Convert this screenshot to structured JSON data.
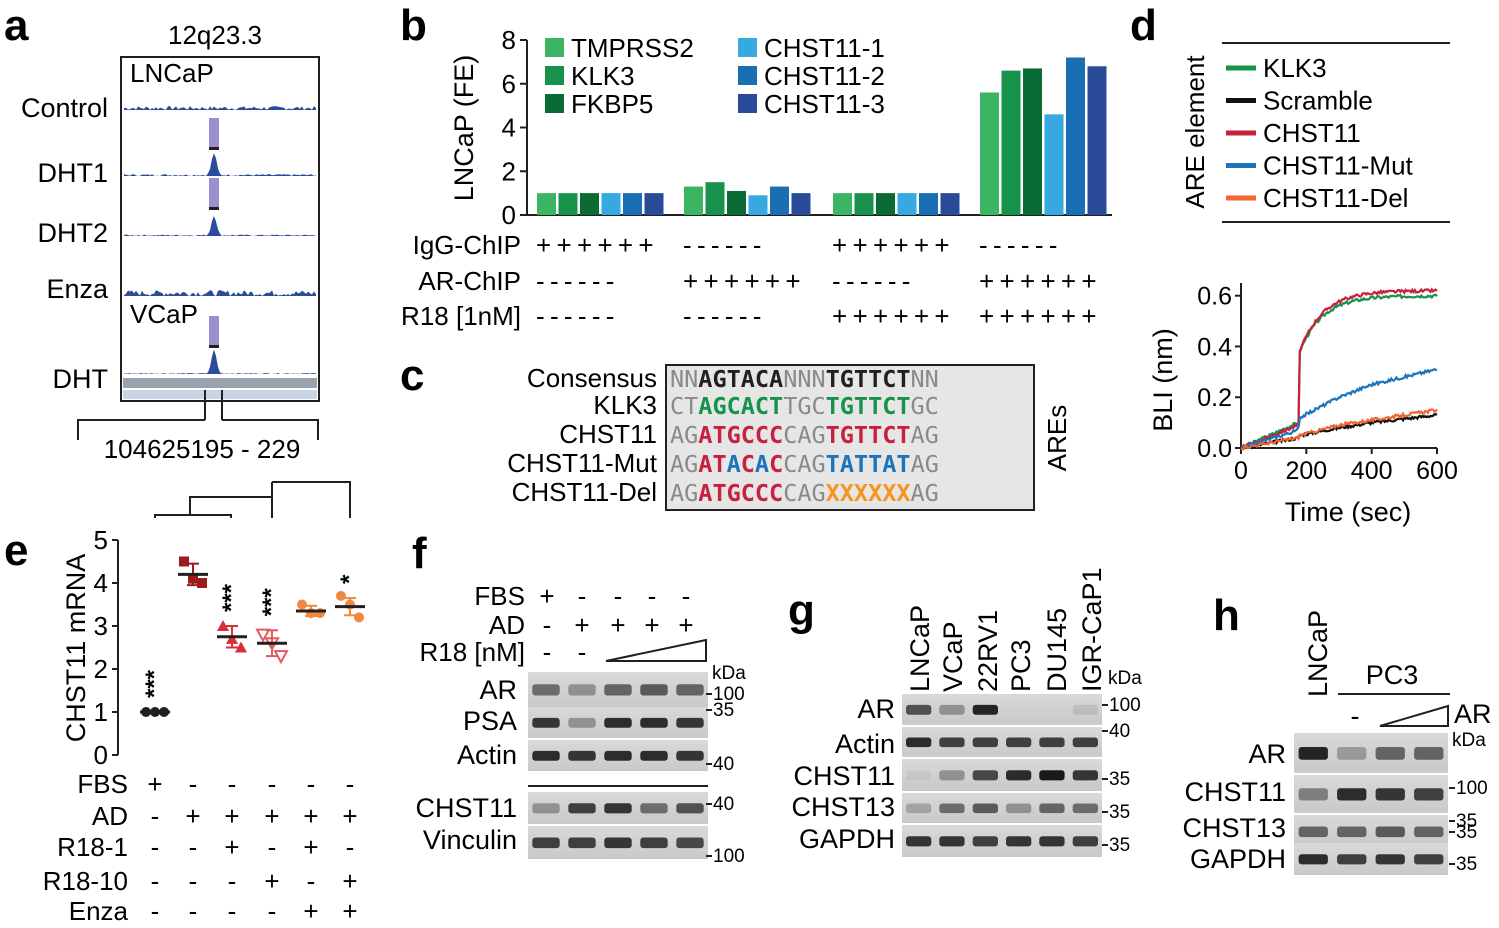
{
  "panel_letters": [
    "a",
    "b",
    "c",
    "d",
    "e",
    "f",
    "g",
    "h"
  ],
  "panel_a": {
    "locus": "12q23.3",
    "group1": "LNCaP",
    "group2": "VCaP",
    "tracks": [
      "Control",
      "DHT1",
      "DHT2",
      "Enza",
      "DHT"
    ],
    "coord_label": "104625195 - 229"
  },
  "chart_data": [
    {
      "type": "bar",
      "panel": "b",
      "ylabel": "LNCaP (FE)",
      "ylim": [
        0,
        8
      ],
      "yticks": [
        "0",
        "2",
        "4",
        "6",
        "8"
      ],
      "legend": [
        "TMPRSS2",
        "KLK3",
        "FKBP5",
        "CHST11-1",
        "CHST11-2",
        "CHST11-3"
      ],
      "colors": [
        "#3cb563",
        "#16924b",
        "#0b6b34",
        "#36a9e1",
        "#1a6fb4",
        "#2a4a9a"
      ],
      "groups": [
        {
          "values": [
            1,
            1,
            1,
            1,
            1,
            1
          ]
        },
        {
          "values": [
            1.3,
            1.5,
            1.1,
            0.9,
            1.3,
            1.0
          ]
        },
        {
          "values": [
            1,
            1,
            1,
            1,
            1,
            1
          ]
        },
        {
          "values": [
            5.6,
            6.6,
            6.7,
            4.6,
            7.2,
            6.8
          ]
        }
      ],
      "rows": [
        {
          "label": "IgG-ChIP",
          "signs": [
            "++++++",
            "------",
            "++++++",
            "------"
          ]
        },
        {
          "label": "AR-ChIP",
          "signs": [
            "------",
            "++++++",
            "------",
            "++++++"
          ]
        },
        {
          "label": "R18 [1nM]",
          "signs": [
            "------",
            "------",
            "++++++",
            "++++++"
          ]
        }
      ]
    },
    {
      "type": "line",
      "panel": "d",
      "ylabel": "BLI (nm)",
      "xlabel": "Time (sec)",
      "xlim": [
        0,
        600
      ],
      "ylim": [
        0,
        0.65
      ],
      "xticks": [
        "0",
        "200",
        "400",
        "600"
      ],
      "yticks": [
        "0.0",
        "0.2",
        "0.4",
        "0.6"
      ],
      "legend_title": "ARE element",
      "series": [
        {
          "name": "KLK3",
          "color": "#16924b",
          "x": [
            0,
            175,
            180,
            200,
            300,
            400,
            600
          ],
          "y": [
            0.0,
            0.1,
            0.4,
            0.46,
            0.53,
            0.57,
            0.6
          ]
        },
        {
          "name": "Scramble",
          "color": "#111111",
          "x": [
            0,
            175,
            180,
            300,
            400,
            600
          ],
          "y": [
            0.0,
            0.04,
            0.05,
            0.08,
            0.1,
            0.13
          ]
        },
        {
          "name": "CHST11",
          "color": "#c8203d",
          "x": [
            0,
            175,
            180,
            200,
            300,
            400,
            600
          ],
          "y": [
            0.0,
            0.09,
            0.4,
            0.47,
            0.55,
            0.58,
            0.62
          ]
        },
        {
          "name": "CHST11-Mut",
          "color": "#1c75bc",
          "x": [
            0,
            175,
            180,
            300,
            400,
            600
          ],
          "y": [
            0.0,
            0.07,
            0.12,
            0.2,
            0.25,
            0.31
          ]
        },
        {
          "name": "CHST11-Del",
          "color": "#f26531",
          "x": [
            0,
            175,
            180,
            300,
            400,
            600
          ],
          "y": [
            0.0,
            0.04,
            0.05,
            0.09,
            0.11,
            0.15
          ]
        }
      ]
    },
    {
      "type": "scatter",
      "panel": "e",
      "ylabel": "CHST11 mRNA",
      "ylim": [
        0,
        5
      ],
      "yticks": [
        "0",
        "1",
        "2",
        "3",
        "4",
        "5"
      ],
      "groups": [
        {
          "points": [
            1,
            1,
            1
          ],
          "mean": 1.0,
          "sd": 0.0,
          "color": "#231f20",
          "marker": "circle",
          "sig": "***"
        },
        {
          "points": [
            4.5,
            4.1,
            4.0
          ],
          "mean": 4.2,
          "sd": 0.25,
          "color": "#9b1b1f",
          "marker": "square",
          "sig": ""
        },
        {
          "points": [
            3.0,
            2.7,
            2.5
          ],
          "mean": 2.75,
          "sd": 0.25,
          "color": "#d6313b",
          "marker": "triangle-up",
          "sig": "***"
        },
        {
          "points": [
            2.8,
            2.6,
            2.3
          ],
          "mean": 2.6,
          "sd": 0.3,
          "color": "#e25b5e",
          "marker": "triangle-down",
          "sig": "***"
        },
        {
          "points": [
            3.5,
            3.3,
            3.3
          ],
          "mean": 3.35,
          "sd": 0.12,
          "color": "#f0883e",
          "marker": "circle",
          "sig": ""
        },
        {
          "points": [
            3.7,
            3.5,
            3.2
          ],
          "mean": 3.45,
          "sd": 0.2,
          "color": "#f0883e",
          "marker": "circle",
          "sig": "*"
        }
      ],
      "rows": [
        {
          "label": "FBS",
          "signs": [
            "+",
            "-",
            "-",
            "-",
            "-",
            "-"
          ]
        },
        {
          "label": "AD",
          "signs": [
            "-",
            "+",
            "+",
            "+",
            "+",
            "+"
          ]
        },
        {
          "label": "R18-1",
          "signs": [
            "-",
            "-",
            "+",
            "-",
            "+",
            "-"
          ]
        },
        {
          "label": "R18-10",
          "signs": [
            "-",
            "-",
            "-",
            "+",
            "-",
            "+"
          ]
        },
        {
          "label": "Enza",
          "signs": [
            "-",
            "-",
            "-",
            "-",
            "+",
            "+"
          ]
        }
      ]
    }
  ],
  "panel_c": {
    "names": [
      "Consensus",
      "KLK3",
      "CHST11",
      "CHST11-Mut",
      "CHST11-Del"
    ],
    "side_label": "AREs",
    "seqs": [
      [
        [
          "NN",
          "g"
        ],
        [
          "AGTACA",
          "k"
        ],
        [
          "NNN",
          "g"
        ],
        [
          "TGTTCT",
          "k"
        ],
        [
          "NN",
          "g"
        ]
      ],
      [
        [
          "CT",
          "g"
        ],
        [
          "AGCACT",
          "gr"
        ],
        [
          "TGC",
          "g"
        ],
        [
          "TGTTCT",
          "gr"
        ],
        [
          "GC",
          "g"
        ]
      ],
      [
        [
          "AG",
          "g"
        ],
        [
          "ATGCCC",
          "r"
        ],
        [
          "CAG",
          "g"
        ],
        [
          "TGTTCT",
          "r"
        ],
        [
          "AG",
          "g"
        ]
      ],
      [
        [
          "AG",
          "g"
        ],
        [
          "AT",
          "r"
        ],
        [
          "A",
          "b"
        ],
        [
          "C",
          "r"
        ],
        [
          "A",
          "b"
        ],
        [
          "C",
          "r"
        ],
        [
          "CAG",
          "g"
        ],
        [
          "TATTAT",
          "b"
        ],
        [
          "AG",
          "g"
        ]
      ],
      [
        [
          "AG",
          "g"
        ],
        [
          "ATGCCC",
          "r"
        ],
        [
          "CAG",
          "g"
        ],
        [
          "XXXXXX",
          "o"
        ],
        [
          "AG",
          "g"
        ]
      ]
    ]
  },
  "panel_f": {
    "rows": [
      {
        "label": "FBS",
        "signs": [
          "+",
          "-",
          "-",
          "-",
          "-"
        ]
      },
      {
        "label": "AD",
        "signs": [
          "-",
          "+",
          "+",
          "+",
          "+"
        ]
      },
      {
        "label": "R18 [nM]",
        "signs": [
          "-",
          "-",
          "",
          "",
          ""
        ]
      }
    ],
    "kda": "kDa",
    "blots": [
      "AR",
      "PSA",
      "Actin",
      "CHST11",
      "Vinculin"
    ],
    "markers": [
      "100",
      "35",
      "40",
      "40",
      "100"
    ]
  },
  "panel_g": {
    "lanes": [
      "LNCaP",
      "VCaP",
      "22RV1",
      "PC3",
      "DU145",
      "IGR-CaP1"
    ],
    "kda": "kDa",
    "blots": [
      "AR",
      "Actin",
      "CHST11",
      "CHST13",
      "GAPDH"
    ],
    "markers": [
      "100",
      "40",
      "35",
      "35",
      "35"
    ]
  },
  "panel_h": {
    "lane1": "LNCaP",
    "group": "PC3",
    "minus": "-",
    "ar_label": "AR",
    "kda": "kDa",
    "blots": [
      "AR",
      "CHST11",
      "CHST13",
      "GAPDH"
    ],
    "markers": [
      "100",
      "35",
      "35",
      "35"
    ]
  }
}
